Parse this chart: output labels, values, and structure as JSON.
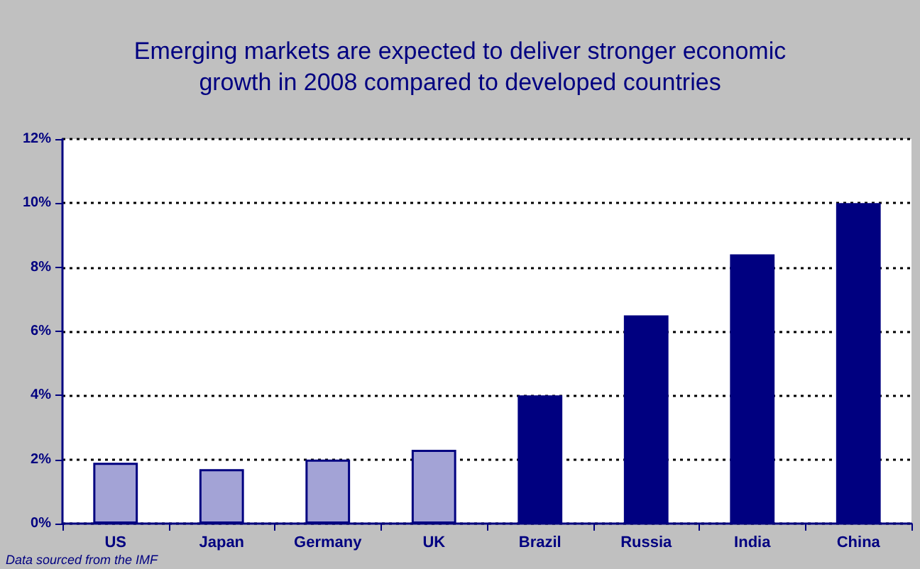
{
  "chart_data": {
    "type": "bar",
    "title": "Emerging markets are expected to deliver stronger economic\ngrowth in 2008 compared to developed countries",
    "categories": [
      "US",
      "Japan",
      "Germany",
      "UK",
      "Brazil",
      "Russia",
      "India",
      "China"
    ],
    "values": [
      1.9,
      1.7,
      2.0,
      2.3,
      4.0,
      6.5,
      8.4,
      10.0
    ],
    "colors": [
      "#a3a3d6",
      "#a3a3d6",
      "#a3a3d6",
      "#a3a3d6",
      "#000080",
      "#000080",
      "#000080",
      "#000080"
    ],
    "ylim": [
      0,
      12
    ],
    "yticks": [
      {
        "value": 0,
        "label": "0%"
      },
      {
        "value": 2,
        "label": "2%"
      },
      {
        "value": 4,
        "label": "4%"
      },
      {
        "value": 6,
        "label": "6%"
      },
      {
        "value": 8,
        "label": "8%"
      },
      {
        "value": 10,
        "label": "10%"
      },
      {
        "value": 12,
        "label": "12%"
      }
    ],
    "grid": "y",
    "annotations": [
      "Data sourced from the IMF"
    ]
  }
}
